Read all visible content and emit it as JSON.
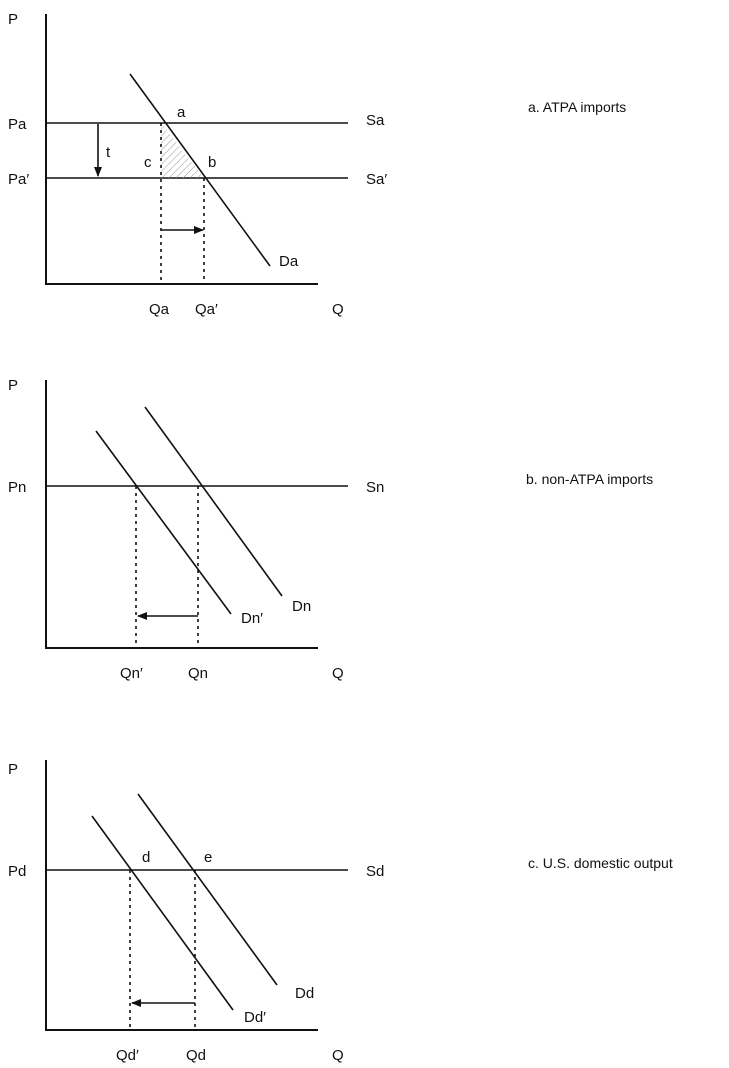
{
  "panels": [
    {
      "caption": "a.  ATPA imports",
      "y_axis": "P",
      "x_axis": "Q",
      "price_labels": [
        "Pa",
        "Pa′"
      ],
      "supply_labels": [
        "Sa",
        "Sa′"
      ],
      "demand_labels": [
        "Da"
      ],
      "quantity_labels": [
        "Qa",
        "Qa′"
      ],
      "point_labels": [
        "a",
        "b",
        "c"
      ],
      "tariff_label": "t"
    },
    {
      "caption": "b. non-ATPA imports",
      "y_axis": "P",
      "x_axis": "Q",
      "price_labels": [
        "Pn"
      ],
      "supply_labels": [
        "Sn"
      ],
      "demand_labels": [
        "Dn′",
        "Dn"
      ],
      "quantity_labels": [
        "Qn′",
        "Qn"
      ]
    },
    {
      "caption": "c. U.S. domestic output",
      "y_axis": "P",
      "x_axis": "Q",
      "price_labels": [
        "Pd"
      ],
      "supply_labels": [
        "Sd"
      ],
      "demand_labels": [
        "Dd",
        "Dd′"
      ],
      "quantity_labels": [
        "Qd′",
        "Qd"
      ],
      "point_labels": [
        "d",
        "e"
      ]
    }
  ]
}
